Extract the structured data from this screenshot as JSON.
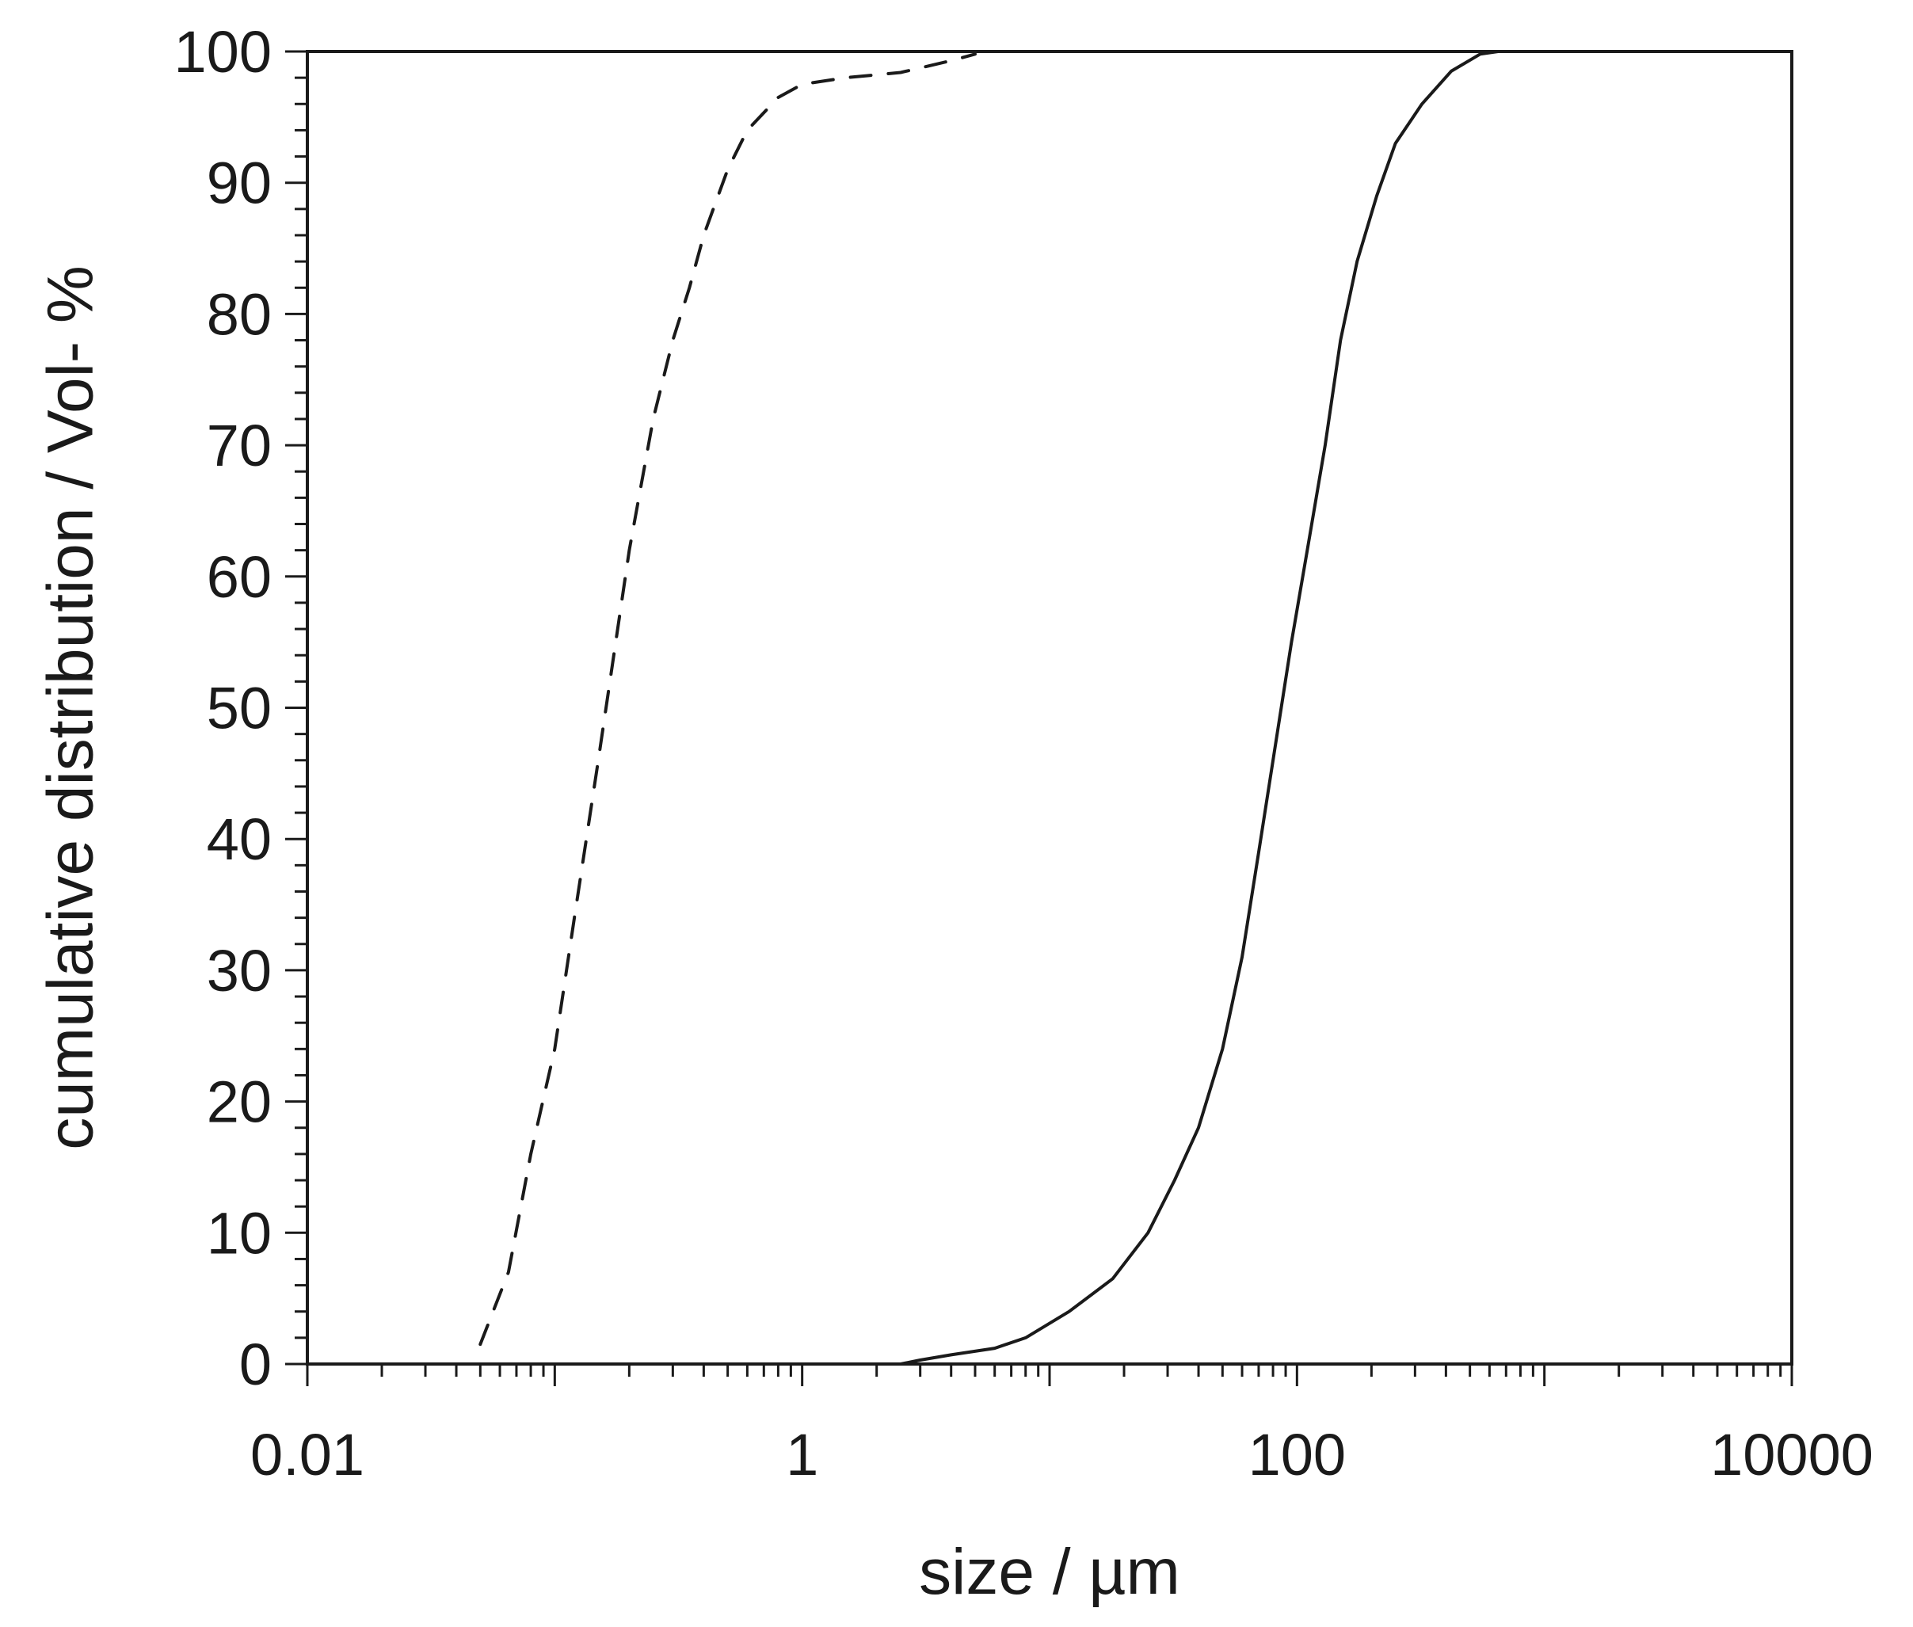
{
  "chart_data": {
    "type": "line",
    "title": "",
    "xlabel": "size / µm",
    "ylabel": "cumulative distribution / Vol- %",
    "x_scale": "log",
    "xlim": [
      0.01,
      10000
    ],
    "ylim": [
      0,
      100
    ],
    "x_ticks": [
      0.01,
      1,
      100,
      10000
    ],
    "x_tick_labels": [
      "0.01",
      "1",
      "100",
      "10000"
    ],
    "y_ticks": [
      0,
      10,
      20,
      30,
      40,
      50,
      60,
      70,
      80,
      90,
      100
    ],
    "y_tick_labels": [
      "0",
      "10",
      "20",
      "30",
      "40",
      "50",
      "60",
      "70",
      "80",
      "90",
      "100"
    ],
    "grid": false,
    "legend": "none",
    "series": [
      {
        "style": "dashed",
        "color": "#1a1a1a",
        "points": [
          [
            0.05,
            1.5
          ],
          [
            0.065,
            7
          ],
          [
            0.08,
            16
          ],
          [
            0.1,
            24
          ],
          [
            0.12,
            34
          ],
          [
            0.15,
            46
          ],
          [
            0.2,
            62
          ],
          [
            0.25,
            72
          ],
          [
            0.3,
            78
          ],
          [
            0.35,
            82
          ],
          [
            0.4,
            86
          ],
          [
            0.5,
            91
          ],
          [
            0.6,
            94
          ],
          [
            0.8,
            96.5
          ],
          [
            1.0,
            97.5
          ],
          [
            1.5,
            98
          ],
          [
            2.5,
            98.4
          ],
          [
            4.0,
            99.3
          ],
          [
            5.0,
            99.8
          ]
        ]
      },
      {
        "style": "solid",
        "color": "#1a1a1a",
        "points": [
          [
            0.02,
            0
          ],
          [
            0.1,
            0
          ],
          [
            1.0,
            0
          ],
          [
            2.5,
            0
          ],
          [
            3.0,
            0.3
          ],
          [
            4.0,
            0.7
          ],
          [
            6.0,
            1.2
          ],
          [
            8.0,
            2
          ],
          [
            12.0,
            4
          ],
          [
            18.0,
            6.5
          ],
          [
            25.0,
            10
          ],
          [
            32.0,
            14
          ],
          [
            40.0,
            18
          ],
          [
            50.0,
            24
          ],
          [
            60.0,
            31
          ],
          [
            70.0,
            39
          ],
          [
            80.0,
            46
          ],
          [
            95.0,
            55
          ],
          [
            110.0,
            62
          ],
          [
            130.0,
            70
          ],
          [
            150.0,
            78
          ],
          [
            175.0,
            84
          ],
          [
            210.0,
            89
          ],
          [
            250.0,
            93
          ],
          [
            320.0,
            96
          ],
          [
            420.0,
            98.5
          ],
          [
            550.0,
            99.8
          ],
          [
            650.0,
            100
          ]
        ]
      }
    ]
  }
}
